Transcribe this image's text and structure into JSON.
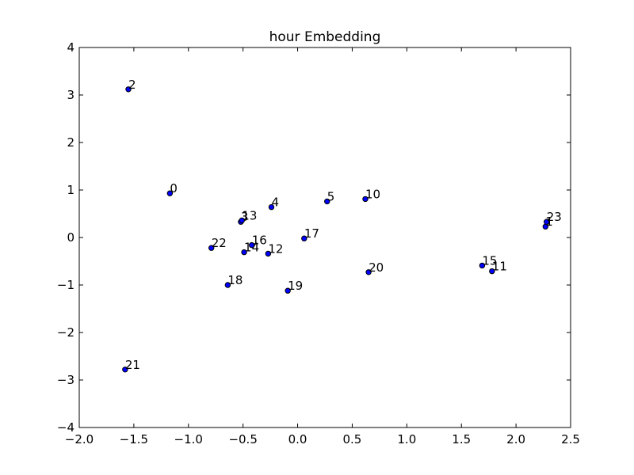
{
  "chart_data": {
    "type": "scatter",
    "title": "hour Embedding",
    "xlabel": "",
    "ylabel": "",
    "xlim": [
      -2.0,
      2.5
    ],
    "ylim": [
      -4,
      4
    ],
    "xticks": [
      -2.0,
      -1.5,
      -1.0,
      -0.5,
      0.0,
      0.5,
      1.0,
      1.5,
      2.0,
      2.5
    ],
    "xtick_labels": [
      "−2.0",
      "−1.5",
      "−1.0",
      "−0.5",
      "0.0",
      "0.5",
      "1.0",
      "1.5",
      "2.0",
      "2.5"
    ],
    "yticks": [
      -4,
      -3,
      -2,
      -1,
      0,
      1,
      2,
      3,
      4
    ],
    "ytick_labels": [
      "−4",
      "−3",
      "−2",
      "−1",
      "0",
      "1",
      "2",
      "3",
      "4"
    ],
    "grid": false,
    "marker_color": "#0000ff",
    "points": [
      {
        "label": "0",
        "x": -1.17,
        "y": 0.93
      },
      {
        "label": "1",
        "x": 2.27,
        "y": 0.23
      },
      {
        "label": "2",
        "x": -1.55,
        "y": 3.12
      },
      {
        "label": "3",
        "x": -0.52,
        "y": 0.33
      },
      {
        "label": "4",
        "x": -0.24,
        "y": 0.64
      },
      {
        "label": "5",
        "x": 0.27,
        "y": 0.76
      },
      {
        "label": "10",
        "x": 0.62,
        "y": 0.81
      },
      {
        "label": "11",
        "x": 1.78,
        "y": -0.71
      },
      {
        "label": "12",
        "x": -0.27,
        "y": -0.34
      },
      {
        "label": "13",
        "x": -0.51,
        "y": 0.36
      },
      {
        "label": "14",
        "x": -0.49,
        "y": -0.31
      },
      {
        "label": "15",
        "x": 1.69,
        "y": -0.59
      },
      {
        "label": "16",
        "x": -0.42,
        "y": -0.16
      },
      {
        "label": "17",
        "x": 0.06,
        "y": -0.02
      },
      {
        "label": "18",
        "x": -0.64,
        "y": -1.0
      },
      {
        "label": "19",
        "x": -0.09,
        "y": -1.12
      },
      {
        "label": "20",
        "x": 0.65,
        "y": -0.73
      },
      {
        "label": "21",
        "x": -1.58,
        "y": -2.78
      },
      {
        "label": "22",
        "x": -0.79,
        "y": -0.22
      },
      {
        "label": "23",
        "x": 2.28,
        "y": 0.33
      }
    ]
  }
}
